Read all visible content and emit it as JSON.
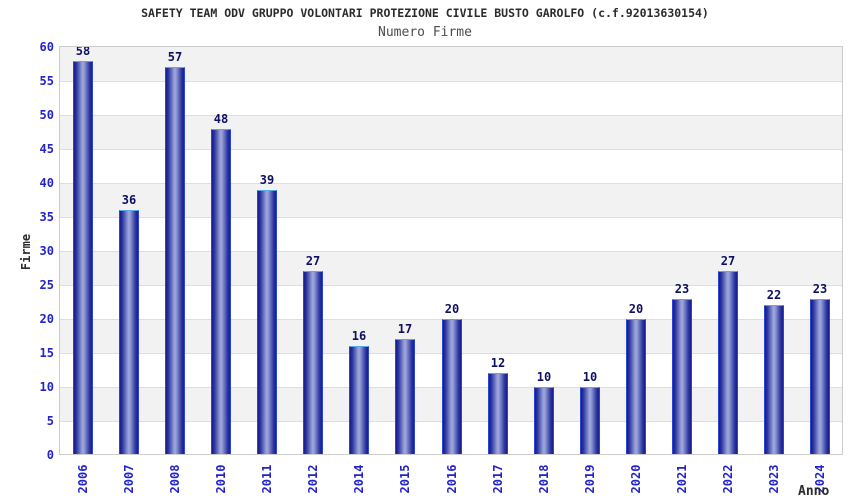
{
  "header": {
    "title": "SAFETY TEAM ODV GRUPPO VOLONTARI PROTEZIONE CIVILE BUSTO GAROLFO (c.f.92013630154)",
    "subtitle": "Numero Firme"
  },
  "chart_data": {
    "type": "bar",
    "title": "Numero Firme",
    "categories": [
      "2006",
      "2007",
      "2008",
      "2010",
      "2011",
      "2012",
      "2014",
      "2015",
      "2016",
      "2017",
      "2018",
      "2019",
      "2020",
      "2021",
      "2022",
      "2023",
      "2024"
    ],
    "values": [
      58,
      36,
      57,
      48,
      39,
      27,
      16,
      17,
      20,
      12,
      10,
      10,
      20,
      23,
      27,
      22,
      23
    ],
    "xlabel": "Anno",
    "ylabel": "Firme",
    "ylim": [
      0,
      60
    ],
    "ytick_step": 5,
    "yticks": [
      0,
      5,
      10,
      15,
      20,
      25,
      30,
      35,
      40,
      45,
      50,
      55,
      60
    ],
    "grid": true,
    "legend": false,
    "bands": "alternating horizontal 5-unit stripes, gray at top"
  },
  "colors": {
    "accent_blue": "#2323cb",
    "value_label": "#0f0f62",
    "title": "#2b2b2b",
    "subtitle": "#4d4d4d",
    "bar_edge_dark": "#171b87",
    "bar_mid": "#2e38a3",
    "bar_center_light": "#9aa3d7",
    "bar_cap_light_blue": "#5aa7f0",
    "bar_side_blue": "#2c46d4",
    "band_gray": "#f2f2f2",
    "gridline": "#dedede",
    "frame": "#cccccc"
  }
}
